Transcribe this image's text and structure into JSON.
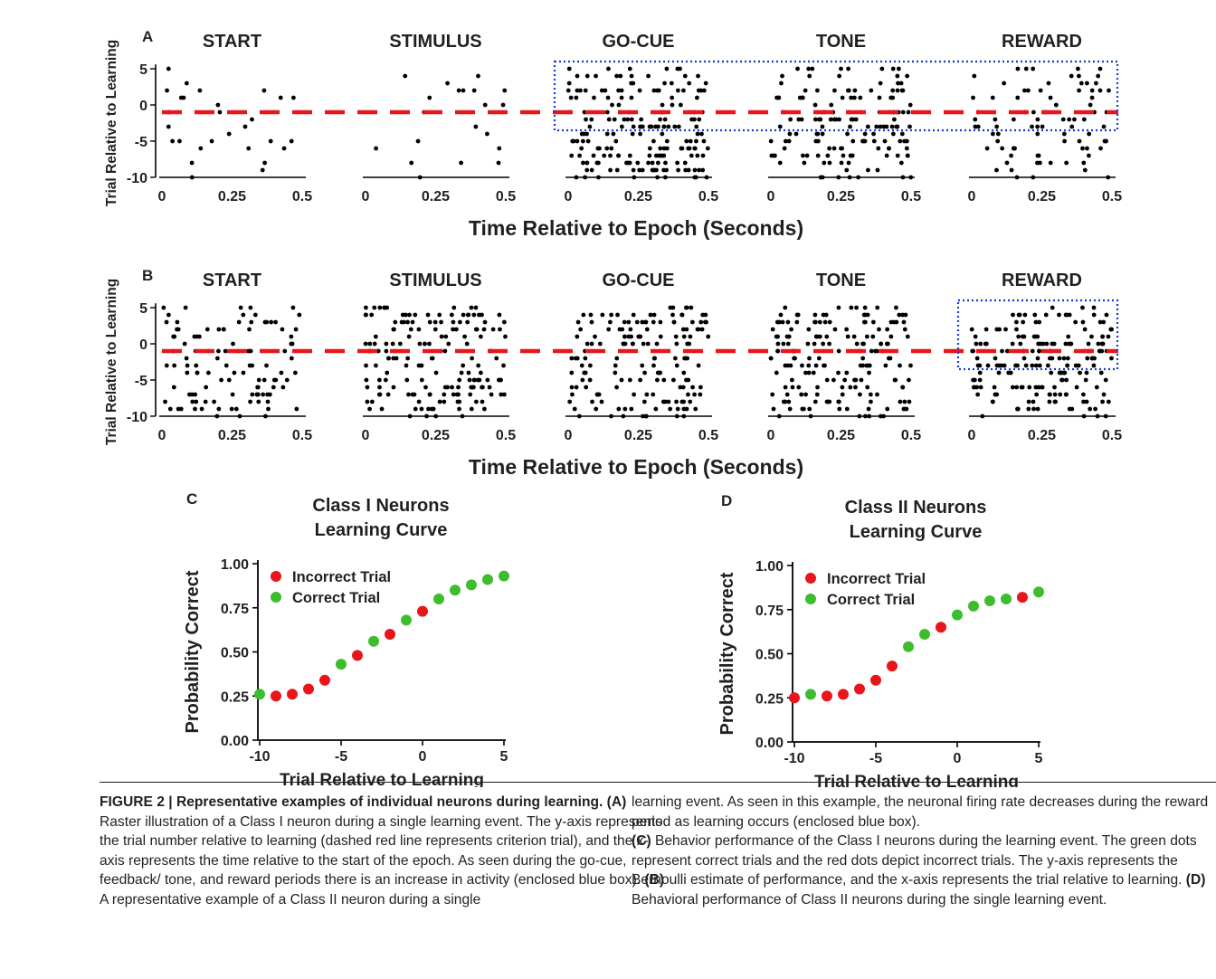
{
  "colors": {
    "red": "#e8151b",
    "green": "#3dbd2e",
    "blue": "#1a36d8",
    "black": "#000000"
  },
  "figure": {
    "panel_a": {
      "letter": "A",
      "epochs": [
        "START",
        "STIMULUS",
        "GO-CUE",
        "TONE",
        "REWARD"
      ],
      "ylabel": "Trial Relative to Learning",
      "xlabel": "Time Relative to Epoch (Seconds)",
      "yticks": [
        "5",
        "0",
        "-5",
        "-10"
      ],
      "xticks": [
        "0",
        "0.25",
        "0.5"
      ],
      "criterion_trial": -1,
      "highlight_epochs": [
        "GO-CUE",
        "TONE",
        "REWARD"
      ],
      "highlight_trials": [
        -3.5,
        6
      ]
    },
    "panel_b": {
      "letter": "B",
      "epochs": [
        "START",
        "STIMULUS",
        "GO-CUE",
        "TONE",
        "REWARD"
      ],
      "ylabel": "Trial Relative to Learning",
      "xlabel": "Time Relative to Epoch (Seconds)",
      "yticks": [
        "5",
        "0",
        "-5",
        "-10"
      ],
      "xticks": [
        "0",
        "0.25",
        "0.5"
      ],
      "criterion_trial": -1,
      "highlight_epochs": [
        "REWARD"
      ],
      "highlight_trials": [
        -3.5,
        6
      ]
    },
    "panel_c": {
      "letter": "C",
      "title_line1": "Class I Neurons",
      "title_line2": "Learning Curve"
    },
    "panel_d": {
      "letter": "D",
      "title_line1": "Class II Neurons",
      "title_line2": "Learning Curve"
    }
  },
  "chart_data": [
    {
      "type": "scatter",
      "panel": "C",
      "title": "Class I Neurons Learning Curve",
      "xlabel": "Trial Relative to Learning",
      "ylabel": "Probability Correct",
      "xlim": [
        -10,
        5
      ],
      "ylim": [
        0,
        1
      ],
      "xticks": [
        "-10",
        "-5",
        "0",
        "5"
      ],
      "yticks": [
        "0.00",
        "0.25",
        "0.50",
        "0.75",
        "1.00"
      ],
      "legend": [
        "Incorrect Trial",
        "Correct Trial"
      ],
      "legend_position": "top-left",
      "points": [
        {
          "x": -10,
          "y": 0.26,
          "series": "Correct Trial"
        },
        {
          "x": -9,
          "y": 0.25,
          "series": "Incorrect Trial"
        },
        {
          "x": -8,
          "y": 0.26,
          "series": "Incorrect Trial"
        },
        {
          "x": -7,
          "y": 0.29,
          "series": "Incorrect Trial"
        },
        {
          "x": -6,
          "y": 0.34,
          "series": "Incorrect Trial"
        },
        {
          "x": -5,
          "y": 0.43,
          "series": "Correct Trial"
        },
        {
          "x": -4,
          "y": 0.48,
          "series": "Incorrect Trial"
        },
        {
          "x": -3,
          "y": 0.56,
          "series": "Correct Trial"
        },
        {
          "x": -2,
          "y": 0.6,
          "series": "Incorrect Trial"
        },
        {
          "x": -1,
          "y": 0.68,
          "series": "Correct Trial"
        },
        {
          "x": 0,
          "y": 0.73,
          "series": "Incorrect Trial"
        },
        {
          "x": 1,
          "y": 0.8,
          "series": "Correct Trial"
        },
        {
          "x": 2,
          "y": 0.85,
          "series": "Correct Trial"
        },
        {
          "x": 3,
          "y": 0.88,
          "series": "Correct Trial"
        },
        {
          "x": 4,
          "y": 0.91,
          "series": "Correct Trial"
        },
        {
          "x": 5,
          "y": 0.93,
          "series": "Correct Trial"
        }
      ]
    },
    {
      "type": "scatter",
      "panel": "D",
      "title": "Class II Neurons Learning Curve",
      "xlabel": "Trial Relative to Learning",
      "ylabel": "Probability Correct",
      "xlim": [
        -10,
        5
      ],
      "ylim": [
        0,
        1
      ],
      "xticks": [
        "-10",
        "-5",
        "0",
        "5"
      ],
      "yticks": [
        "0.00",
        "0.25",
        "0.50",
        "0.75",
        "1.00"
      ],
      "legend": [
        "Incorrect Trial",
        "Correct Trial"
      ],
      "legend_position": "top-left",
      "points": [
        {
          "x": -10,
          "y": 0.25,
          "series": "Incorrect Trial"
        },
        {
          "x": -9,
          "y": 0.27,
          "series": "Correct Trial"
        },
        {
          "x": -8,
          "y": 0.26,
          "series": "Incorrect Trial"
        },
        {
          "x": -7,
          "y": 0.27,
          "series": "Incorrect Trial"
        },
        {
          "x": -6,
          "y": 0.3,
          "series": "Incorrect Trial"
        },
        {
          "x": -5,
          "y": 0.35,
          "series": "Incorrect Trial"
        },
        {
          "x": -4,
          "y": 0.43,
          "series": "Incorrect Trial"
        },
        {
          "x": -3,
          "y": 0.54,
          "series": "Correct Trial"
        },
        {
          "x": -2,
          "y": 0.61,
          "series": "Correct Trial"
        },
        {
          "x": -1,
          "y": 0.65,
          "series": "Incorrect Trial"
        },
        {
          "x": 0,
          "y": 0.72,
          "series": "Correct Trial"
        },
        {
          "x": 1,
          "y": 0.77,
          "series": "Correct Trial"
        },
        {
          "x": 2,
          "y": 0.8,
          "series": "Correct Trial"
        },
        {
          "x": 3,
          "y": 0.81,
          "series": "Correct Trial"
        },
        {
          "x": 4,
          "y": 0.82,
          "series": "Incorrect Trial"
        },
        {
          "x": 5,
          "y": 0.85,
          "series": "Correct Trial"
        }
      ]
    }
  ],
  "caption": {
    "fig_label": "FIGURE 2 | Representative examples of individual neurons during learning.",
    "a_tag": "(A)",
    "a_text": " Raster illustration of a Class I neuron during a single learning event. The y-axis represents the trial number relative to learning (dashed red line represents criterion trial), and the x-axis represents the time relative to the start of the epoch. As seen during the go-cue, feedback/ tone, and reward periods there is an increase in activity (enclosed blue box). ",
    "b_tag": "(B)",
    "b_text": " A representative example of a Class II neuron during a single",
    "b_text_cont": "learning event. As seen in this example, the neuronal firing rate decreases during the reward period as learning occurs (enclosed blue box).",
    "c_tag": "(C)",
    "c_text": " Behavior performance of the Class I neurons during the learning event. The green dots represent correct trials and the red dots depict incorrect trials. The y-axis represents the Bernoulli estimate of performance, and the x-axis represents the trial relative to learning. ",
    "d_tag": "(D)",
    "d_text": " Behavioral performance of Class II neurons during the single learning event."
  }
}
